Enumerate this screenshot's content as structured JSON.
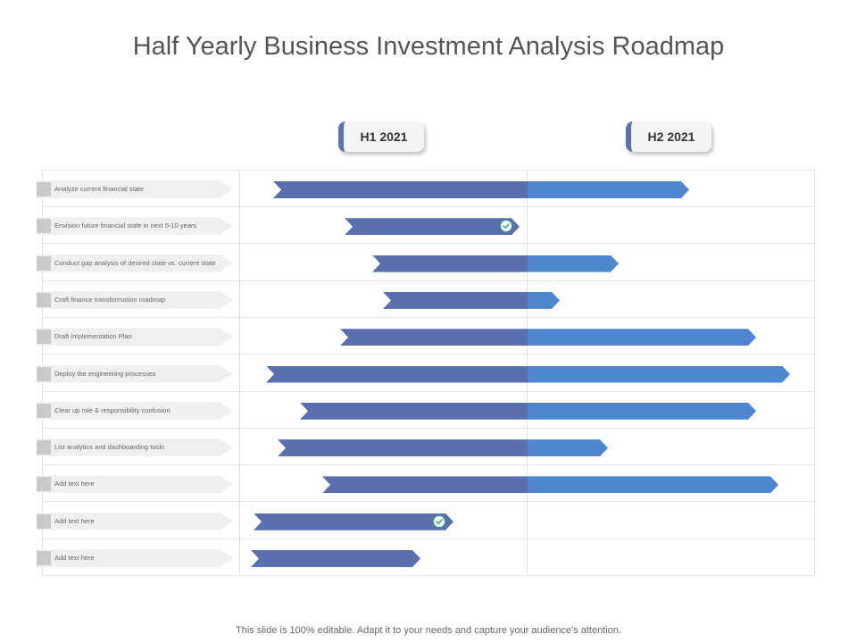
{
  "title": "Half Yearly Business Investment Analysis Roadmap",
  "periods": [
    {
      "label": "H1 2021"
    },
    {
      "label": "H2 2021"
    }
  ],
  "tasks": [
    {
      "label": "Analyze current financial state",
      "completed": false
    },
    {
      "label": "Envision future financial state in next 5-10 years",
      "completed": true
    },
    {
      "label": "Conduct gap analysis of desired state vs. current state",
      "completed": false
    },
    {
      "label": "Craft finance transformation roadmap",
      "completed": false
    },
    {
      "label": "Draft Implementation Plan",
      "completed": false
    },
    {
      "label": "Deploy the engineering processes",
      "completed": false
    },
    {
      "label": "Clear up role & responsibility confusion",
      "completed": false
    },
    {
      "label": "List analytics and dashboarding tools",
      "completed": false
    },
    {
      "label": "Add text here",
      "completed": false
    },
    {
      "label": "Add text here",
      "completed": true
    },
    {
      "label": "Add text here",
      "completed": false
    }
  ],
  "footer": "This slide is 100% editable. Adapt it to your needs and capture your audience's attention.",
  "colors": {
    "h1_bar": "#5a6fad",
    "h2_bar": "#4e86d0",
    "tab_accent": "#5b73ad",
    "check": "#3aa57a"
  }
}
